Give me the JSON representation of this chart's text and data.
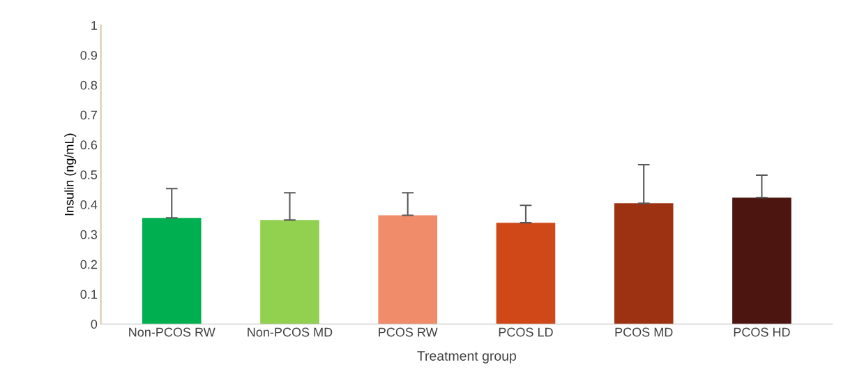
{
  "chart_data": {
    "type": "bar",
    "xlabel": "Treatment group",
    "ylabel": "Insulin (ng/mL)",
    "categories": [
      "Non-PCOS RW",
      "Non-PCOS MD",
      "PCOS RW",
      "PCOS LD",
      "PCOS MD",
      "PCOS HD"
    ],
    "values": [
      0.355,
      0.348,
      0.364,
      0.339,
      0.404,
      0.423
    ],
    "colors": [
      "#00b050",
      "#92d050",
      "#f08c6a",
      "#d04818",
      "#9c3212",
      "#4c1510"
    ],
    "errors": [
      [
        0.355,
        0.453
      ],
      [
        0.348,
        0.439
      ],
      [
        0.364,
        0.439
      ],
      [
        0.339,
        0.397
      ],
      [
        0.404,
        0.533
      ],
      [
        0.423,
        0.498
      ]
    ],
    "ylim": [
      0,
      1
    ],
    "yticks": [
      0,
      0.1,
      0.2,
      0.3,
      0.4,
      0.5,
      0.6,
      0.7,
      0.8,
      0.9,
      1
    ],
    "grid": false,
    "legend": false
  }
}
